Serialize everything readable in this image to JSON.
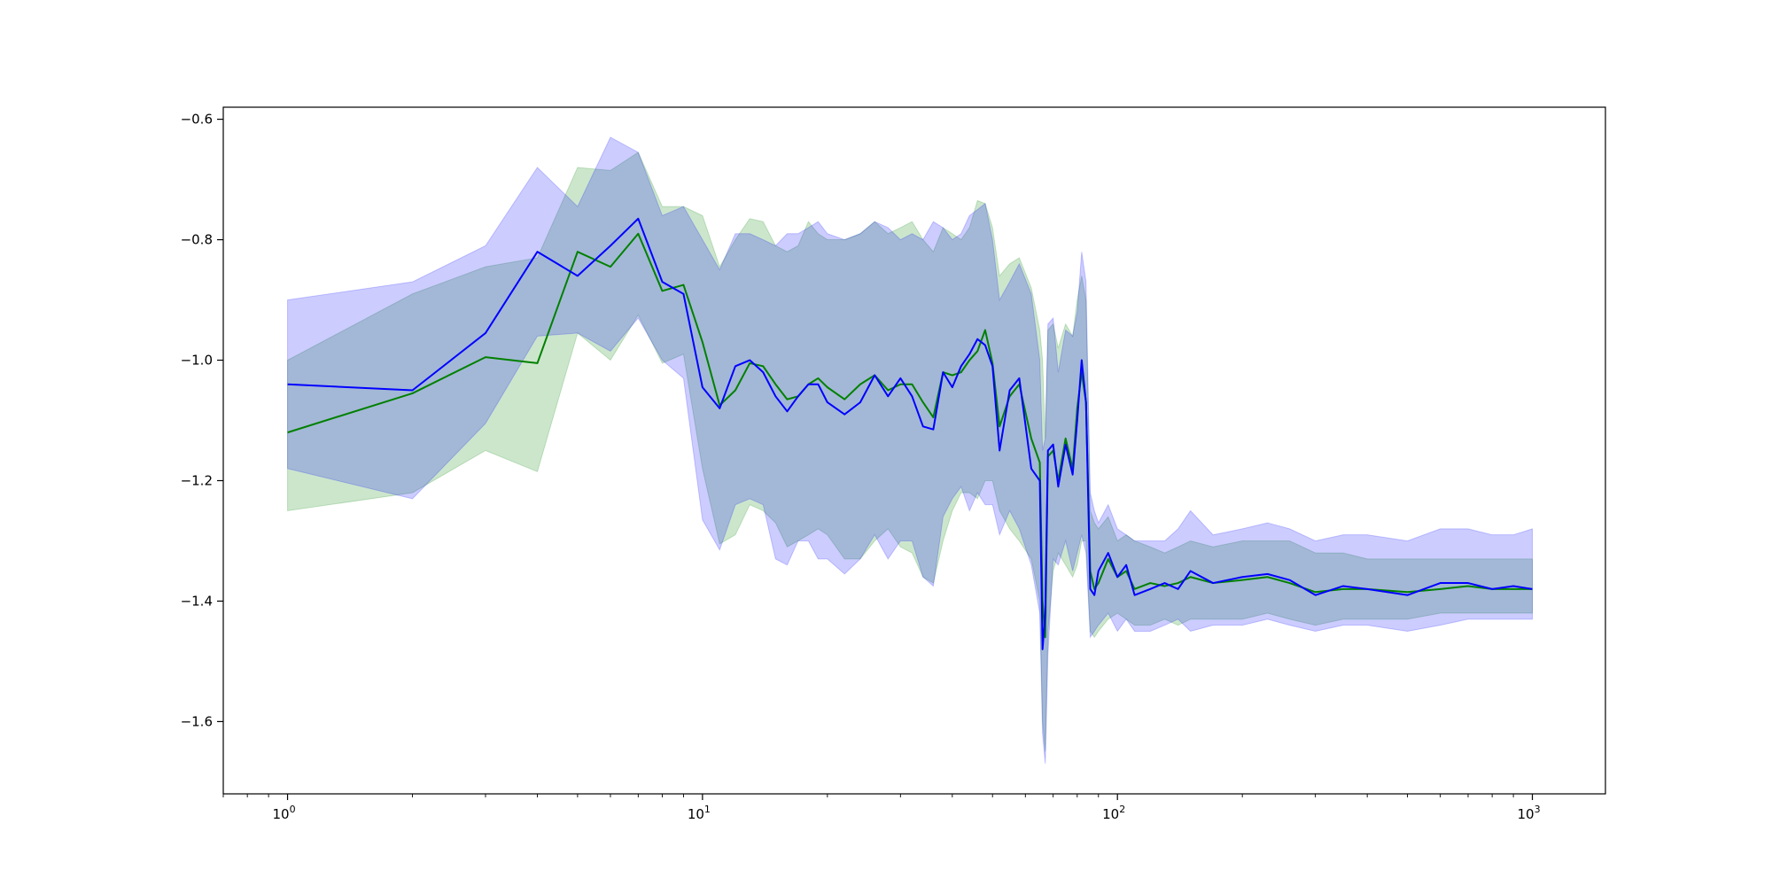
{
  "chart_data": {
    "type": "line",
    "title": "",
    "xlabel": "",
    "ylabel": "",
    "xscale": "log",
    "xlim": [
      0.7,
      1500
    ],
    "ylim": [
      -1.72,
      -0.58
    ],
    "grid": false,
    "legend": "none",
    "x_tick_labels": [
      {
        "value": 1,
        "base": "10",
        "exp": "0"
      },
      {
        "value": 10,
        "base": "10",
        "exp": "1"
      },
      {
        "value": 100,
        "base": "10",
        "exp": "2"
      },
      {
        "value": 1000,
        "base": "10",
        "exp": "3"
      }
    ],
    "y_tick_labels": [
      {
        "value": -0.6,
        "label": "−0.6"
      },
      {
        "value": -0.8,
        "label": "−0.8"
      },
      {
        "value": -1.0,
        "label": "−1.0"
      },
      {
        "value": -1.2,
        "label": "−1.2"
      },
      {
        "value": -1.4,
        "label": "−1.4"
      },
      {
        "value": -1.6,
        "label": "−1.6"
      }
    ],
    "series": [
      {
        "color": "#008000",
        "band_color": "#008000",
        "band_opacity": 0.2,
        "x": [
          1,
          2,
          3,
          4,
          5,
          6,
          7,
          8,
          9,
          10,
          11,
          12,
          13,
          14,
          15,
          16,
          17,
          18,
          19,
          20,
          22,
          24,
          26,
          28,
          30,
          32,
          34,
          36,
          38,
          40,
          42,
          44,
          46,
          48,
          50,
          52,
          55,
          58,
          62,
          65,
          66,
          67,
          68,
          70,
          72,
          75,
          78,
          80,
          82,
          84,
          86,
          88,
          90,
          95,
          100,
          105,
          110,
          120,
          130,
          140,
          150,
          170,
          200,
          230,
          260,
          300,
          350,
          400,
          500,
          600,
          700,
          800,
          900,
          1000
        ],
        "y": [
          -1.12,
          -1.055,
          -0.995,
          -1.005,
          -0.82,
          -0.845,
          -0.79,
          -0.885,
          -0.875,
          -0.97,
          -1.075,
          -1.05,
          -1.005,
          -1.01,
          -1.04,
          -1.065,
          -1.06,
          -1.04,
          -1.03,
          -1.045,
          -1.065,
          -1.04,
          -1.025,
          -1.05,
          -1.04,
          -1.04,
          -1.07,
          -1.095,
          -1.02,
          -1.025,
          -1.02,
          -1.0,
          -0.985,
          -0.95,
          -1.005,
          -1.11,
          -1.06,
          -1.04,
          -1.13,
          -1.17,
          -1.4,
          -1.46,
          -1.16,
          -1.15,
          -1.2,
          -1.13,
          -1.18,
          -1.08,
          -1.02,
          -1.07,
          -1.35,
          -1.38,
          -1.37,
          -1.33,
          -1.36,
          -1.35,
          -1.38,
          -1.37,
          -1.375,
          -1.37,
          -1.36,
          -1.37,
          -1.365,
          -1.36,
          -1.37,
          -1.385,
          -1.38,
          -1.38,
          -1.385,
          -1.38,
          -1.375,
          -1.38,
          -1.38,
          -1.38
        ],
        "lower": [
          -1.25,
          -1.22,
          -1.15,
          -1.185,
          -0.955,
          -1.0,
          -0.925,
          -1.005,
          -0.99,
          -1.18,
          -1.305,
          -1.29,
          -1.24,
          -1.25,
          -1.27,
          -1.31,
          -1.3,
          -1.29,
          -1.28,
          -1.29,
          -1.33,
          -1.33,
          -1.3,
          -1.28,
          -1.31,
          -1.32,
          -1.36,
          -1.37,
          -1.3,
          -1.25,
          -1.22,
          -1.22,
          -1.23,
          -1.2,
          -1.2,
          -1.25,
          -1.28,
          -1.3,
          -1.33,
          -1.4,
          -1.6,
          -1.65,
          -1.45,
          -1.35,
          -1.32,
          -1.34,
          -1.36,
          -1.34,
          -1.3,
          -1.3,
          -1.45,
          -1.46,
          -1.45,
          -1.43,
          -1.42,
          -1.43,
          -1.44,
          -1.44,
          -1.43,
          -1.44,
          -1.43,
          -1.43,
          -1.43,
          -1.42,
          -1.43,
          -1.44,
          -1.43,
          -1.43,
          -1.43,
          -1.42,
          -1.42,
          -1.42,
          -1.42,
          -1.42
        ],
        "upper": [
          -1.0,
          -0.89,
          -0.845,
          -0.83,
          -0.68,
          -0.685,
          -0.655,
          -0.745,
          -0.745,
          -0.76,
          -0.845,
          -0.8,
          -0.765,
          -0.77,
          -0.81,
          -0.82,
          -0.81,
          -0.77,
          -0.79,
          -0.8,
          -0.8,
          -0.79,
          -0.77,
          -0.79,
          -0.78,
          -0.77,
          -0.8,
          -0.82,
          -0.78,
          -0.79,
          -0.8,
          -0.78,
          -0.735,
          -0.74,
          -0.78,
          -0.86,
          -0.84,
          -0.83,
          -0.88,
          -0.95,
          -1.0,
          -1.13,
          -0.95,
          -0.94,
          -0.98,
          -0.94,
          -0.96,
          -0.9,
          -0.86,
          -0.9,
          -1.25,
          -1.27,
          -1.28,
          -1.26,
          -1.3,
          -1.29,
          -1.3,
          -1.31,
          -1.32,
          -1.31,
          -1.3,
          -1.31,
          -1.3,
          -1.3,
          -1.3,
          -1.32,
          -1.32,
          -1.33,
          -1.33,
          -1.33,
          -1.33,
          -1.33,
          -1.33,
          -1.33
        ]
      },
      {
        "color": "#0000ff",
        "band_color": "#0000ff",
        "band_opacity": 0.2,
        "x": [
          1,
          2,
          3,
          4,
          5,
          6,
          7,
          8,
          9,
          10,
          11,
          12,
          13,
          14,
          15,
          16,
          17,
          18,
          19,
          20,
          22,
          24,
          26,
          28,
          30,
          32,
          34,
          36,
          38,
          40,
          42,
          44,
          46,
          48,
          50,
          52,
          55,
          58,
          62,
          65,
          66,
          67,
          68,
          70,
          72,
          75,
          78,
          80,
          82,
          84,
          86,
          88,
          90,
          95,
          100,
          105,
          110,
          120,
          130,
          140,
          150,
          170,
          200,
          230,
          260,
          300,
          350,
          400,
          500,
          600,
          700,
          800,
          900,
          1000
        ],
        "y": [
          -1.04,
          -1.05,
          -0.955,
          -0.82,
          -0.86,
          -0.81,
          -0.765,
          -0.87,
          -0.89,
          -1.045,
          -1.08,
          -1.01,
          -1.0,
          -1.02,
          -1.06,
          -1.085,
          -1.06,
          -1.04,
          -1.04,
          -1.07,
          -1.09,
          -1.07,
          -1.025,
          -1.06,
          -1.03,
          -1.06,
          -1.11,
          -1.115,
          -1.02,
          -1.045,
          -1.01,
          -0.99,
          -0.965,
          -0.975,
          -1.01,
          -1.15,
          -1.05,
          -1.03,
          -1.18,
          -1.2,
          -1.48,
          -1.42,
          -1.15,
          -1.14,
          -1.21,
          -1.14,
          -1.19,
          -1.1,
          -1.0,
          -1.07,
          -1.38,
          -1.39,
          -1.35,
          -1.32,
          -1.36,
          -1.34,
          -1.39,
          -1.38,
          -1.37,
          -1.38,
          -1.35,
          -1.37,
          -1.36,
          -1.355,
          -1.365,
          -1.39,
          -1.375,
          -1.38,
          -1.39,
          -1.37,
          -1.37,
          -1.38,
          -1.375,
          -1.38
        ],
        "lower": [
          -1.18,
          -1.23,
          -1.105,
          -0.96,
          -0.955,
          -0.985,
          -0.93,
          -1.0,
          -1.03,
          -1.265,
          -1.315,
          -1.24,
          -1.23,
          -1.24,
          -1.33,
          -1.34,
          -1.3,
          -1.3,
          -1.33,
          -1.33,
          -1.355,
          -1.33,
          -1.29,
          -1.33,
          -1.3,
          -1.3,
          -1.36,
          -1.375,
          -1.26,
          -1.23,
          -1.21,
          -1.25,
          -1.22,
          -1.24,
          -1.24,
          -1.29,
          -1.25,
          -1.28,
          -1.34,
          -1.42,
          -1.62,
          -1.67,
          -1.49,
          -1.33,
          -1.34,
          -1.3,
          -1.35,
          -1.32,
          -1.29,
          -1.32,
          -1.46,
          -1.45,
          -1.44,
          -1.42,
          -1.45,
          -1.43,
          -1.45,
          -1.45,
          -1.44,
          -1.43,
          -1.45,
          -1.44,
          -1.44,
          -1.43,
          -1.44,
          -1.45,
          -1.44,
          -1.44,
          -1.45,
          -1.44,
          -1.43,
          -1.43,
          -1.43,
          -1.43
        ],
        "upper": [
          -0.9,
          -0.87,
          -0.81,
          -0.68,
          -0.745,
          -0.63,
          -0.655,
          -0.76,
          -0.745,
          -0.8,
          -0.85,
          -0.79,
          -0.79,
          -0.8,
          -0.81,
          -0.79,
          -0.79,
          -0.78,
          -0.77,
          -0.79,
          -0.8,
          -0.79,
          -0.77,
          -0.78,
          -0.8,
          -0.79,
          -0.8,
          -0.77,
          -0.78,
          -0.8,
          -0.79,
          -0.76,
          -0.75,
          -0.74,
          -0.8,
          -0.9,
          -0.87,
          -0.84,
          -0.89,
          -1.0,
          -1.15,
          -1.13,
          -0.94,
          -0.93,
          -1.02,
          -0.95,
          -0.96,
          -0.92,
          -0.82,
          -0.87,
          -1.22,
          -1.25,
          -1.27,
          -1.24,
          -1.28,
          -1.29,
          -1.3,
          -1.3,
          -1.3,
          -1.28,
          -1.25,
          -1.29,
          -1.28,
          -1.27,
          -1.28,
          -1.3,
          -1.29,
          -1.29,
          -1.3,
          -1.28,
          -1.28,
          -1.29,
          -1.29,
          -1.28
        ]
      }
    ]
  }
}
